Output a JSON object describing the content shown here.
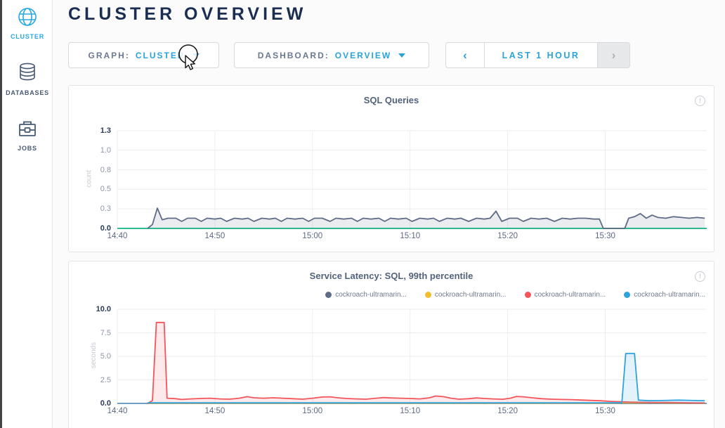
{
  "header": {
    "title": "CLUSTER OVERVIEW"
  },
  "sidebar": {
    "items": [
      {
        "label": "CLUSTER",
        "icon": "globe-icon",
        "active": true
      },
      {
        "label": "DATABASES",
        "icon": "database-icon",
        "active": false
      },
      {
        "label": "JOBS",
        "icon": "briefcase-icon",
        "active": false
      }
    ]
  },
  "controls": {
    "graph": {
      "label": "GRAPH:",
      "value": "CLUSTER"
    },
    "dashboard": {
      "label": "DASHBOARD:",
      "value": "OVERVIEW"
    },
    "timewindow": {
      "prev": "‹",
      "label": "LAST 1 HOUR",
      "next": "›"
    }
  },
  "icons": {
    "info": "!"
  },
  "colors": {
    "accent_blue": "#28a3dc",
    "navy_text": "#1b2e52",
    "sql_baseline": "#2dbd92",
    "latency_baseline": "#6fa0c3",
    "series_slate": "#5f6c87",
    "series_yellow": "#f2be2d",
    "series_red": "#f4555b",
    "series_blue": "#2ea3dd"
  },
  "chart_data": [
    {
      "type": "area",
      "title": "SQL Queries",
      "ylabel": "count",
      "xlabel": "",
      "y_ticks": [
        "1.3",
        "1.0",
        "0.8",
        "0.5",
        "0.3",
        "0.0"
      ],
      "ylim": [
        0,
        1.25
      ],
      "x_ticks": [
        "14:40",
        "14:50",
        "15:00",
        "15:10",
        "15:20",
        "15:30"
      ],
      "x_tick_minutes": [
        0,
        10,
        20,
        30,
        40,
        50
      ],
      "xlim": [
        0,
        60.4
      ],
      "grid": true,
      "legend_position": "none",
      "baseline_color": "#2dbd92",
      "series": [
        {
          "legend_label": "",
          "color": "#5f6c87",
          "fill": "rgba(95,108,135,0.13)",
          "points": [
            [
              3.1,
              0
            ],
            [
              3.6,
              0.05
            ],
            [
              4.1,
              0.26
            ],
            [
              4.6,
              0.11
            ],
            [
              5.2,
              0.13
            ],
            [
              6,
              0.13
            ],
            [
              6.6,
              0.09
            ],
            [
              7.2,
              0.13
            ],
            [
              8,
              0.13
            ],
            [
              8.6,
              0.09
            ],
            [
              9.2,
              0.13
            ],
            [
              10,
              0.12
            ],
            [
              10.6,
              0.13
            ],
            [
              11.2,
              0.09
            ],
            [
              12,
              0.13
            ],
            [
              12.8,
              0.12
            ],
            [
              13.4,
              0.13
            ],
            [
              14,
              0.09
            ],
            [
              14.8,
              0.13
            ],
            [
              15.6,
              0.12
            ],
            [
              16.2,
              0.13
            ],
            [
              16.8,
              0.09
            ],
            [
              17.4,
              0.13
            ],
            [
              18.2,
              0.12
            ],
            [
              19,
              0.13
            ],
            [
              19.6,
              0.09
            ],
            [
              20.2,
              0.13
            ],
            [
              21,
              0.13
            ],
            [
              21.8,
              0.09
            ],
            [
              22.4,
              0.13
            ],
            [
              23.2,
              0.12
            ],
            [
              24,
              0.13
            ],
            [
              24.6,
              0.09
            ],
            [
              25.2,
              0.13
            ],
            [
              26,
              0.12
            ],
            [
              26.8,
              0.13
            ],
            [
              27.4,
              0.09
            ],
            [
              28,
              0.13
            ],
            [
              28.8,
              0.12
            ],
            [
              29.6,
              0.13
            ],
            [
              30.2,
              0.09
            ],
            [
              31,
              0.13
            ],
            [
              31.8,
              0.12
            ],
            [
              32.4,
              0.13
            ],
            [
              33,
              0.09
            ],
            [
              33.8,
              0.13
            ],
            [
              34.6,
              0.12
            ],
            [
              35.2,
              0.13
            ],
            [
              36,
              0.09
            ],
            [
              36.8,
              0.13
            ],
            [
              37.6,
              0.12
            ],
            [
              38.2,
              0.13
            ],
            [
              38.8,
              0.22
            ],
            [
              39.4,
              0.09
            ],
            [
              40.2,
              0.13
            ],
            [
              41,
              0.13
            ],
            [
              41.6,
              0.09
            ],
            [
              42.4,
              0.13
            ],
            [
              43.2,
              0.12
            ],
            [
              44,
              0.13
            ],
            [
              44.8,
              0.09
            ],
            [
              45.6,
              0.13
            ],
            [
              46.4,
              0.12
            ],
            [
              47.2,
              0.13
            ],
            [
              48,
              0.13
            ],
            [
              48.8,
              0.12
            ],
            [
              49.4,
              0.12
            ],
            [
              49.8,
              0
            ],
            [
              52,
              0
            ],
            [
              52.4,
              0.13
            ],
            [
              53,
              0.15
            ],
            [
              53.6,
              0.19
            ],
            [
              54.2,
              0.13
            ],
            [
              54.8,
              0.17
            ],
            [
              55.4,
              0.14
            ],
            [
              56.2,
              0.13
            ],
            [
              57,
              0.15
            ],
            [
              57.8,
              0.14
            ],
            [
              58.6,
              0.13
            ],
            [
              59.4,
              0.14
            ],
            [
              60.2,
              0.13
            ]
          ]
        }
      ]
    },
    {
      "type": "area",
      "title": "Service Latency: SQL, 99th percentile",
      "ylabel": "seconds",
      "xlabel": "",
      "y_ticks": [
        "10.0",
        "7.5",
        "5.0",
        "2.5",
        "0.0"
      ],
      "ylim": [
        0,
        10
      ],
      "x_ticks": [
        "14:40",
        "14:50",
        "15:00",
        "15:10",
        "15:20",
        "15:30"
      ],
      "x_tick_minutes": [
        0,
        10,
        20,
        30,
        40,
        50
      ],
      "xlim": [
        0,
        60.4
      ],
      "grid": true,
      "legend_position": "top-right",
      "baseline_color": "#6fa0c3",
      "series": [
        {
          "legend_label": "cockroach-ultramarin...",
          "color": "#5f6c87",
          "fill": "none",
          "points": [
            [
              3.1,
              0.02
            ],
            [
              60.2,
              0.02
            ]
          ]
        },
        {
          "legend_label": "cockroach-ultramarin...",
          "color": "#f2be2d",
          "fill": "none",
          "points": [
            [
              3.1,
              0.03
            ],
            [
              50,
              0.03
            ],
            [
              52,
              0.06
            ],
            [
              55,
              0.06
            ],
            [
              58,
              0.04
            ],
            [
              60.2,
              0.03
            ]
          ]
        },
        {
          "legend_label": "cockroach-ultramarin...",
          "color": "#f4555b",
          "fill": "rgba(244,85,91,0.12)",
          "points": [
            [
              3.1,
              0
            ],
            [
              3.6,
              0.3
            ],
            [
              4.0,
              8.6
            ],
            [
              4.8,
              8.6
            ],
            [
              5.1,
              0.55
            ],
            [
              6,
              0.5
            ],
            [
              6.6,
              0.42
            ],
            [
              7.5,
              0.48
            ],
            [
              8.5,
              0.52
            ],
            [
              9.5,
              0.55
            ],
            [
              10.5,
              0.48
            ],
            [
              11.5,
              0.45
            ],
            [
              12.5,
              0.55
            ],
            [
              13.3,
              0.72
            ],
            [
              14,
              0.6
            ],
            [
              15,
              0.55
            ],
            [
              16,
              0.6
            ],
            [
              17,
              0.55
            ],
            [
              18,
              0.5
            ],
            [
              19,
              0.45
            ],
            [
              20,
              0.55
            ],
            [
              21,
              0.68
            ],
            [
              21.8,
              0.7
            ],
            [
              22.6,
              0.6
            ],
            [
              23.5,
              0.52
            ],
            [
              24.5,
              0.48
            ],
            [
              25.5,
              0.45
            ],
            [
              26.5,
              0.55
            ],
            [
              27.3,
              0.62
            ],
            [
              28,
              0.58
            ],
            [
              29,
              0.55
            ],
            [
              30,
              0.52
            ],
            [
              31,
              0.48
            ],
            [
              32,
              0.6
            ],
            [
              32.6,
              0.78
            ],
            [
              33.4,
              0.72
            ],
            [
              34.2,
              0.55
            ],
            [
              35,
              0.45
            ],
            [
              36,
              0.5
            ],
            [
              36.8,
              0.58
            ],
            [
              37.6,
              0.52
            ],
            [
              38.5,
              0.48
            ],
            [
              39.5,
              0.44
            ],
            [
              40.3,
              0.56
            ],
            [
              40.9,
              0.74
            ],
            [
              41.6,
              0.7
            ],
            [
              42.5,
              0.6
            ],
            [
              43.5,
              0.5
            ],
            [
              44.5,
              0.45
            ],
            [
              45.5,
              0.42
            ],
            [
              46.5,
              0.4
            ],
            [
              47.5,
              0.36
            ],
            [
              48.5,
              0.32
            ],
            [
              49.5,
              0.28
            ],
            [
              50.5,
              0.22
            ],
            [
              51.5,
              0.18
            ],
            [
              52.5,
              0.14
            ],
            [
              53.5,
              0.12
            ],
            [
              54.5,
              0.1
            ],
            [
              55.5,
              0.1
            ],
            [
              56.5,
              0.1
            ],
            [
              57.5,
              0.08
            ],
            [
              58.5,
              0.06
            ],
            [
              59.5,
              0.05
            ],
            [
              60.2,
              0.05
            ]
          ]
        },
        {
          "legend_label": "cockroach-ultramarin...",
          "color": "#2ea3dd",
          "fill": "rgba(46,163,221,0.13)",
          "points": [
            [
              3.1,
              0.07
            ],
            [
              10,
              0.07
            ],
            [
              20,
              0.07
            ],
            [
              30,
              0.07
            ],
            [
              40,
              0.07
            ],
            [
              50,
              0.07
            ],
            [
              51.7,
              0.08
            ],
            [
              52.1,
              5.3
            ],
            [
              53.0,
              5.3
            ],
            [
              53.4,
              0.35
            ],
            [
              54.5,
              0.28
            ],
            [
              55.5,
              0.3
            ],
            [
              56.5,
              0.33
            ],
            [
              57.5,
              0.35
            ],
            [
              58.5,
              0.33
            ],
            [
              59.5,
              0.3
            ],
            [
              60.2,
              0.3
            ]
          ]
        }
      ]
    }
  ]
}
